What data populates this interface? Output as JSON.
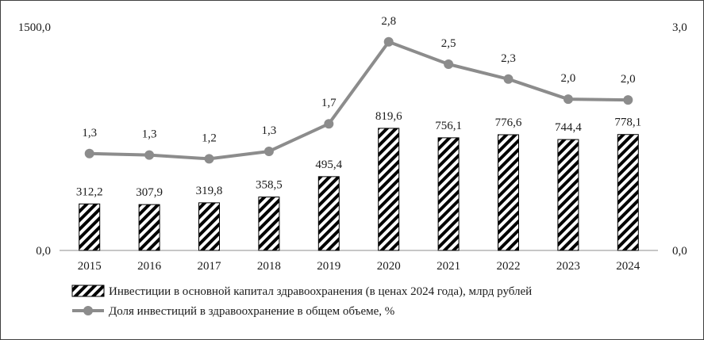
{
  "chart_data": {
    "type": "bar+line",
    "categories": [
      "2015",
      "2016",
      "2017",
      "2018",
      "2019",
      "2020",
      "2021",
      "2022",
      "2023",
      "2024"
    ],
    "series": [
      {
        "name": "Инвестиции в основной капитал здравоохранения (в ценах 2024 года), млрд рублей",
        "type": "bar",
        "axis": "left",
        "values": [
          312.2,
          307.9,
          319.8,
          358.5,
          495.4,
          819.6,
          756.1,
          776.6,
          744.4,
          778.1
        ],
        "labels": [
          "312,2",
          "307,9",
          "319,8",
          "358,5",
          "495,4",
          "819,6",
          "756,1",
          "776,6",
          "744,4",
          "778,1"
        ],
        "fill": "diagonal-hatch",
        "color": "#000000"
      },
      {
        "name": "Доля инвестиций в здравоохранение в общем объеме, %",
        "type": "line",
        "axis": "right",
        "values": [
          1.3,
          1.28,
          1.23,
          1.33,
          1.7,
          2.8,
          2.5,
          2.3,
          2.03,
          2.02
        ],
        "labels": [
          "1,3",
          "1,3",
          "1,2",
          "1,3",
          "1,7",
          "2,8",
          "2,5",
          "2,3",
          "2,0",
          "2,0"
        ],
        "color": "#8c8c8c",
        "marker": "circle"
      }
    ],
    "y_left": {
      "ylim": [
        0,
        1500
      ],
      "tick_labels": [
        "0,0",
        "1500,0"
      ]
    },
    "y_right": {
      "ylim": [
        0,
        3
      ],
      "tick_labels": [
        "0,0",
        "3,0"
      ]
    },
    "grid": false,
    "legend_position": "bottom"
  }
}
